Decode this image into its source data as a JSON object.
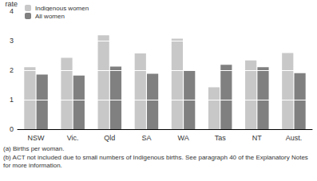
{
  "chart_data": {
    "type": "bar",
    "y_label": "rate",
    "categories": [
      "NSW",
      "Vic.",
      "Qld",
      "SA",
      "WA",
      "Tas",
      "NT",
      "Aust."
    ],
    "series": [
      {
        "name": "Indigenous women",
        "color": "#c8c8c8",
        "values": [
          2.1,
          2.42,
          3.18,
          2.57,
          3.07,
          1.42,
          2.33,
          2.58
        ]
      },
      {
        "name": "All women",
        "color": "#808080",
        "values": [
          1.85,
          1.82,
          2.12,
          1.88,
          1.97,
          2.18,
          2.1,
          1.9
        ]
      }
    ],
    "ylim": [
      0,
      4
    ],
    "yticks": [
      0,
      1,
      2,
      3,
      4
    ],
    "grid": true,
    "legend": "top-left",
    "annotations": [
      "(a) Births per woman.",
      "(b) ACT not included due to small numbers of Indigenous births. See paragraph 40 of the Explanatory Notes for more information."
    ]
  }
}
